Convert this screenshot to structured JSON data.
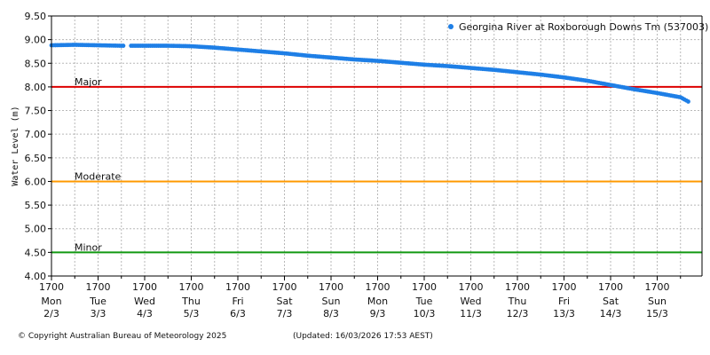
{
  "chart_data": {
    "type": "scatter",
    "title": "",
    "xlabel": "",
    "ylabel": "Water Level (m)",
    "ylim": [
      4.0,
      9.5
    ],
    "yticks": [
      "4.00",
      "4.50",
      "5.00",
      "5.50",
      "6.00",
      "6.50",
      "7.00",
      "7.50",
      "8.00",
      "8.50",
      "9.00",
      "9.50"
    ],
    "xticks": [
      {
        "time": "1700",
        "day": "Mon",
        "date": "2/3"
      },
      {
        "time": "1700",
        "day": "Tue",
        "date": "3/3"
      },
      {
        "time": "1700",
        "day": "Wed",
        "date": "4/3"
      },
      {
        "time": "1700",
        "day": "Thu",
        "date": "5/3"
      },
      {
        "time": "1700",
        "day": "Fri",
        "date": "6/3"
      },
      {
        "time": "1700",
        "day": "Sat",
        "date": "7/3"
      },
      {
        "time": "1700",
        "day": "Sun",
        "date": "8/3"
      },
      {
        "time": "1700",
        "day": "Mon",
        "date": "9/3"
      },
      {
        "time": "1700",
        "day": "Tue",
        "date": "10/3"
      },
      {
        "time": "1700",
        "day": "Wed",
        "date": "11/3"
      },
      {
        "time": "1700",
        "day": "Thu",
        "date": "12/3"
      },
      {
        "time": "1700",
        "day": "Fri",
        "date": "13/3"
      },
      {
        "time": "1700",
        "day": "Sat",
        "date": "14/3"
      },
      {
        "time": "1700",
        "day": "Sun",
        "date": "15/3"
      }
    ],
    "grid": true,
    "legend_position": "top-right",
    "series": [
      {
        "name": "Georgina River at Roxborough Downs Tm (537003)",
        "color": "#1e7fe6",
        "x": [
          "2026-03-02 17:00",
          "2026-03-03 05:00",
          "2026-03-03 17:00",
          "2026-03-04 05:00",
          "2026-03-04 17:00",
          "2026-03-05 05:00",
          "2026-03-05 17:00",
          "2026-03-06 05:00",
          "2026-03-06 17:00",
          "2026-03-07 05:00",
          "2026-03-07 17:00",
          "2026-03-08 05:00",
          "2026-03-08 17:00",
          "2026-03-09 05:00",
          "2026-03-09 17:00",
          "2026-03-10 05:00",
          "2026-03-10 17:00",
          "2026-03-11 05:00",
          "2026-03-11 17:00",
          "2026-03-12 05:00",
          "2026-03-12 17:00",
          "2026-03-13 05:00",
          "2026-03-13 17:00",
          "2026-03-14 05:00",
          "2026-03-14 17:00",
          "2026-03-15 05:00",
          "2026-03-15 17:00",
          "2026-03-16 05:00",
          "2026-03-16 09:00"
        ],
        "y": [
          8.88,
          8.89,
          8.88,
          8.87,
          8.87,
          8.87,
          8.86,
          8.83,
          8.79,
          8.75,
          8.71,
          8.66,
          8.62,
          8.58,
          8.55,
          8.51,
          8.47,
          8.44,
          8.4,
          8.36,
          8.31,
          8.26,
          8.2,
          8.13,
          8.04,
          7.95,
          7.87,
          7.78,
          7.69
        ]
      }
    ],
    "thresholds": [
      {
        "label": "Major",
        "value": 8.0,
        "color": "#dd0000"
      },
      {
        "label": "Moderate",
        "value": 6.0,
        "color": "#ff9900"
      },
      {
        "label": "Minor",
        "value": 4.5,
        "color": "#119911"
      }
    ]
  },
  "footer": {
    "copyright": "© Copyright Australian Bureau of Meteorology 2025",
    "updated": "(Updated: 16/03/2026 17:53 AEST)"
  }
}
